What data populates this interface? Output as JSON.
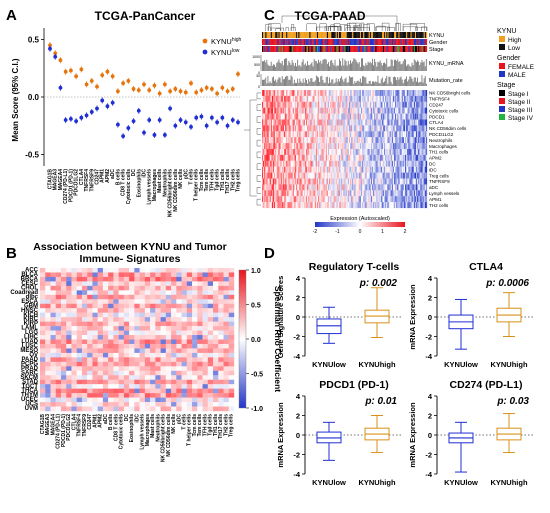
{
  "panel_labels": {
    "a": "A",
    "b": "B",
    "c": "C",
    "d": "D"
  },
  "panel_a": {
    "title": "TCGA-PanCancer",
    "ylabel": "Mean Score (95% C.I.)",
    "legend_high": "KYNU",
    "legend_high_sup": "high",
    "legend_low": "KYNU",
    "legend_low_sup": "low",
    "colors": {
      "high": "#e8740c",
      "low": "#1f2fd6"
    }
  },
  "panel_b": {
    "title_line1": "Association between KYNU and Tumor",
    "title_line2": "Immune- Signatures",
    "colorbar_label": "Spearman Rho Coefficient",
    "colorbar_ticks": [
      "1.0",
      "0.5",
      "0.0",
      "-0.5",
      "-1.0"
    ]
  },
  "panel_c": {
    "title": "TCGA-PAAD",
    "track_labels": [
      "KYNU",
      "Gender",
      "Stage"
    ],
    "bar_labels": [
      "KYNU_mRNA",
      "Mutation_rate"
    ],
    "axis1_ticks": [
      "1000",
      "500",
      "0"
    ],
    "axis2_ticks": [
      "30",
      "0"
    ],
    "row_labels": [
      "NK CD56bright cells",
      "TNFRSF4",
      "CD247",
      "Cytotoxic cells",
      "PDCD1",
      "CTLA4",
      "NK CD56dim cells",
      "PDCD1LG2",
      "Neutrophils",
      "Macrophages",
      "TH1 cells",
      "APM2",
      "DC",
      "iDC",
      "Treg cells",
      "TNFRSF9",
      "aDC",
      "Lymph vessels",
      "APM1",
      "TH2 cells"
    ],
    "colorbar_title": "Expression (Autoscaled)",
    "colorbar_ticks": [
      "-2",
      "-1",
      "0",
      "1",
      "2"
    ],
    "legend": {
      "kynu_title": "KYNU",
      "kynu_items": [
        "High",
        "Low"
      ],
      "gender_title": "Gender",
      "gender_items": [
        "FEMALE",
        "MALE"
      ],
      "stage_title": "Stage",
      "stage_items": [
        "Stage I",
        "Stage II",
        "Stage III",
        "Stage IV"
      ]
    },
    "colors": {
      "high": "#f0a020",
      "low": "#111111",
      "female": "#e8141e",
      "male": "#2236c8",
      "stage1": "#000000",
      "stage2": "#e8141e",
      "stage3": "#2236c8",
      "stage4": "#22b43c"
    }
  },
  "panel_d": {
    "plots": [
      {
        "title": "Regulatory  T-cells",
        "ylabel": "Gene Signature Scores",
        "p": "p: 0.002"
      },
      {
        "title": "CTLA4",
        "ylabel": "mRNA Expression",
        "p": "p: 0.0006"
      },
      {
        "title": "PDCD1 (PD-1)",
        "ylabel": "mRNA Expression",
        "p": "p: 0.01"
      },
      {
        "title": "CD274 (PD-L1)",
        "ylabel": "mRNA Expression",
        "p": "p: 0.03"
      }
    ],
    "xlabels": [
      "KYNUlow",
      "KYNUhigh"
    ]
  },
  "chart_data": [
    {
      "type": "scatter",
      "title": "TCGA-PanCancer",
      "ylabel": "Mean Score (95% C.I.)",
      "ylim": [
        -0.6,
        0.6
      ],
      "categories": [
        "CTAG1B",
        "MAGEA3",
        "MAGEA4",
        "CD274 (PD-L1)",
        "PDCD1 (PD-1)",
        "PDCD1LG2",
        "CTLA4",
        "TNFRSF4",
        "TNFRSF9",
        "CD247",
        "APM1",
        "APM2",
        "aDC",
        "B cells",
        "CD8 T cells",
        "Cytotoxic cells",
        "DC",
        "Eosinophils",
        "iDC",
        "Lymph vessels",
        "Macrophages",
        "Mast cells",
        "Neutrophils",
        "NK CD56bright cells",
        "NK CD56dim cells",
        "NK cells",
        "pDC",
        "T cells",
        "T helper cells",
        "Tcm cells",
        "Tem cells",
        "TFH cells",
        "Tgd cells",
        "TH1 cells",
        "TH17 cells",
        "TH2 cells",
        "Treg cells"
      ],
      "series": [
        {
          "name": "KYNUhigh",
          "values": [
            0.45,
            0.38,
            0.32,
            0.22,
            0.23,
            0.18,
            0.24,
            0.11,
            0.14,
            0.09,
            0.19,
            0.22,
            0.18,
            0.05,
            0.12,
            0.14,
            0.07,
            0.06,
            0.11,
            0.06,
            0.1,
            0.03,
            0.11,
            0.05,
            0.07,
            0.05,
            0.04,
            0.12,
            0.04,
            0.06,
            0.08,
            0.07,
            0.03,
            0.08,
            0.05,
            0.07,
            0.2
          ]
        },
        {
          "name": "KYNUlow",
          "values": [
            0.42,
            0.35,
            0.08,
            -0.2,
            -0.19,
            -0.21,
            -0.18,
            -0.16,
            -0.13,
            -0.1,
            -0.03,
            -0.08,
            -0.05,
            -0.24,
            -0.34,
            -0.27,
            -0.21,
            -0.12,
            -0.31,
            -0.2,
            -0.33,
            -0.2,
            -0.33,
            -0.1,
            -0.25,
            -0.2,
            -0.22,
            -0.26,
            -0.18,
            -0.17,
            -0.25,
            -0.18,
            -0.22,
            -0.18,
            -0.25,
            -0.2,
            -0.22
          ]
        }
      ]
    },
    {
      "type": "heatmap",
      "title": "Association between KYNU and Tumor Immune- Signatures",
      "y_categories": [
        "ACC",
        "BLCA",
        "BRCA",
        "CESC",
        "CHOL",
        "Coadread",
        "dlbc",
        "ESCA",
        "GBM",
        "HNSC",
        "KICH",
        "KIRC",
        "KIRP",
        "LAML",
        "LGG",
        "LIHC",
        "LUAD",
        "LUSC",
        "MESO",
        "OV",
        "PAAD",
        "PCPG",
        "PRAD",
        "SARC",
        "SKCM",
        "STAD",
        "TGCT",
        "THCA",
        "THYM",
        "UCEC",
        "UCS",
        "UVM"
      ],
      "x_categories": [
        "CTAG1B",
        "MAGEA3",
        "MAGEA4",
        "CD274 (PD-L1)",
        "PDCD1 (PD-1)",
        "PDCD1LG2",
        "CTLA4",
        "TNFRSF4",
        "TNFRSF9",
        "CD247",
        "APM1",
        "APM2",
        "aDC",
        "B cells",
        "CD8 T cells",
        "Cytotoxic cells",
        "DC",
        "Eosinophils",
        "iDC",
        "Lymph vessels",
        "Macrophages",
        "Mast cells",
        "Neutrophils",
        "NK CD56bright cells",
        "NK CD56dim cells",
        "NK cells",
        "pDC",
        "T cells",
        "T helper cells",
        "Tcm cells",
        "Tem cells",
        "TFH cells",
        "Tgd cells",
        "TH1 cells",
        "TH17 cells",
        "TH2 cells",
        "Treg cells"
      ],
      "color_range": [
        -1.0,
        1.0
      ]
    },
    {
      "type": "heatmap",
      "title": "TCGA-PAAD",
      "y_categories": [
        "NK CD56bright cells",
        "TNFRSF4",
        "CD247",
        "Cytotoxic cells",
        "PDCD1",
        "CTLA4",
        "NK CD56dim cells",
        "PDCD1LG2",
        "Neutrophils",
        "Macrophages",
        "TH1 cells",
        "APM2",
        "DC",
        "iDC",
        "Treg cells",
        "TNFRSF9",
        "aDC",
        "Lymph vessels",
        "APM1",
        "TH2 cells"
      ],
      "color_range": [
        -2,
        2
      ]
    },
    {
      "type": "box",
      "title": "Regulatory  T-cells",
      "ylabel": "Gene Signature Scores",
      "categories": [
        "KYNUlow",
        "KYNUhigh"
      ],
      "ylim": [
        -4,
        4
      ],
      "boxes": [
        {
          "min": -2.7,
          "q1": -1.7,
          "median": -0.9,
          "q3": -0.2,
          "max": 1.0
        },
        {
          "min": -2.1,
          "q1": -0.6,
          "median": 0.1,
          "q3": 0.7,
          "max": 3.0
        }
      ]
    },
    {
      "type": "box",
      "title": "CTLA4",
      "ylabel": "mRNA Expression",
      "categories": [
        "KYNUlow",
        "KYNUhigh"
      ],
      "ylim": [
        -4,
        4
      ],
      "boxes": [
        {
          "min": -3.3,
          "q1": -1.2,
          "median": -0.5,
          "q3": 0.2,
          "max": 1.8
        },
        {
          "min": -2.0,
          "q1": -0.5,
          "median": 0.2,
          "q3": 0.9,
          "max": 2.5
        }
      ]
    },
    {
      "type": "box",
      "title": "PDCD1 (PD-1)",
      "ylabel": "mRNA Expression",
      "categories": [
        "KYNUlow",
        "KYNUhigh"
      ],
      "ylim": [
        -4,
        4
      ],
      "boxes": [
        {
          "min": -2.6,
          "q1": -0.8,
          "median": -0.3,
          "q3": 0.3,
          "max": 1.3
        },
        {
          "min": -1.8,
          "q1": -0.5,
          "median": 0.1,
          "q3": 0.7,
          "max": 2.0
        }
      ]
    },
    {
      "type": "box",
      "title": "CD274 (PD-L1)",
      "ylabel": "mRNA Expression",
      "categories": [
        "KYNUlow",
        "KYNUhigh"
      ],
      "ylim": [
        -4,
        4
      ],
      "boxes": [
        {
          "min": -3.8,
          "q1": -0.8,
          "median": -0.3,
          "q3": 0.2,
          "max": 1.3
        },
        {
          "min": -1.8,
          "q1": -0.5,
          "median": 0.1,
          "q3": 0.7,
          "max": 2.2
        }
      ]
    }
  ]
}
